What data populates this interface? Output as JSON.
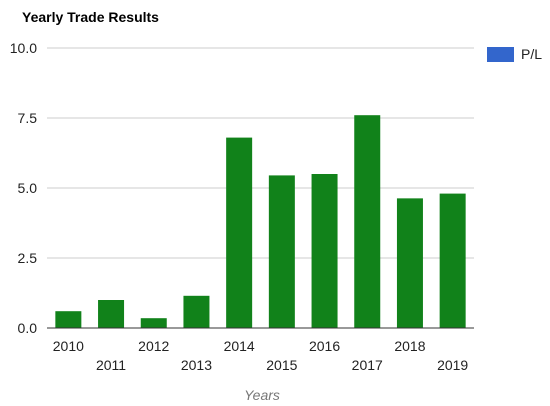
{
  "chart_data": {
    "type": "bar",
    "title": "Yearly Trade Results",
    "xlabel": "Years",
    "ylabel": "",
    "categories": [
      "2010",
      "2011",
      "2012",
      "2013",
      "2014",
      "2015",
      "2016",
      "2017",
      "2018",
      "2019"
    ],
    "series": [
      {
        "name": "P/L",
        "values": [
          0.6,
          1.0,
          0.35,
          1.15,
          6.8,
          5.45,
          5.5,
          7.6,
          4.63,
          4.8
        ]
      }
    ],
    "ylim": [
      0,
      10
    ],
    "yticks": [
      "0.0",
      "2.5",
      "5.0",
      "7.5",
      "10.0"
    ],
    "grid": true,
    "legend_position": "right",
    "bar_color": "#11821a",
    "legend_color": "#3366cc"
  }
}
